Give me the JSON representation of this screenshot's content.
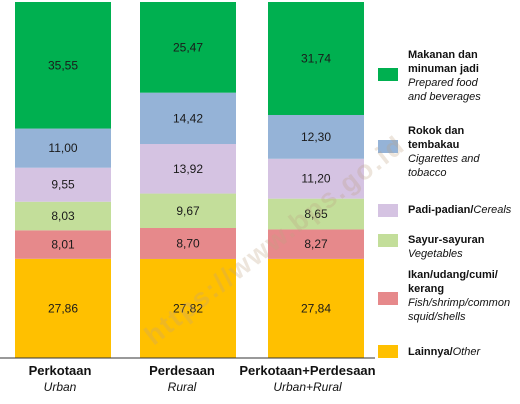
{
  "chart_data": {
    "type": "bar",
    "stacked": true,
    "categories": [
      {
        "name": "Perkotaan",
        "sub": "Urban"
      },
      {
        "name": "Perdesaan",
        "sub": "Rural"
      },
      {
        "name": "Perkotaan+Perdesaan",
        "sub": "Urban+Rural"
      }
    ],
    "series": [
      {
        "name": "Lainnya",
        "name_en": "Other",
        "color": "#FFC000",
        "values": [
          27.86,
          27.82,
          27.84
        ],
        "labels": [
          "27,86",
          "27,82",
          "27,84"
        ]
      },
      {
        "name": "Ikan/udang/cumi/kerang",
        "name_en": "Fish/shrimp/common squid/shells",
        "color": "#E6898B",
        "values": [
          8.01,
          8.7,
          8.27
        ],
        "labels": [
          "8,01",
          "8,70",
          "8,27"
        ]
      },
      {
        "name": "Sayur-sayuran",
        "name_en": "Vegetables",
        "color": "#C3DE9A",
        "values": [
          8.03,
          9.67,
          8.65
        ],
        "labels": [
          "8,03",
          "9,67",
          "8,65"
        ]
      },
      {
        "name": "Padi-padian/",
        "name_en": "Cereals",
        "color": "#D5C3E2",
        "values": [
          9.55,
          13.92,
          11.2
        ],
        "labels": [
          "9,55",
          "13,92",
          "11,20"
        ]
      },
      {
        "name": "Rokok dan tembakau",
        "name_en": "Cigarettes and tobacco",
        "color": "#95B3D7",
        "values": [
          11.0,
          14.42,
          12.3
        ],
        "labels": [
          "11,00",
          "14,42",
          "12,30"
        ]
      },
      {
        "name": "Makanan dan minuman jadi",
        "name_en": "Prepared food and beverages",
        "color": "#00B050",
        "values": [
          35.55,
          25.47,
          31.74
        ],
        "labels": [
          "35,55",
          "25,47",
          "31,74"
        ]
      }
    ],
    "ylim": [
      0,
      100
    ],
    "legend_position": "right",
    "grid": false
  },
  "legend": [
    {
      "name": "Makanan dan minuman jadi",
      "trans": "Prepared food and beverages",
      "color": "#00B050"
    },
    {
      "name": "Rokok dan tembakau",
      "trans": "Cigarettes and tobacco",
      "color": "#95B3D7"
    },
    {
      "name": "Padi-padian/",
      "trans": "Cereals",
      "color": "#D5C3E2"
    },
    {
      "name": "Sayur-sayuran",
      "trans": "Vegetables",
      "color": "#C3DE9A"
    },
    {
      "name": "Ikan/udang/cumi/ kerang",
      "trans": "Fish/shrimp/common squid/shells",
      "color": "#E6898B"
    },
    {
      "name": "Lainnya/",
      "trans": "Other",
      "color": "#FFC000"
    }
  ],
  "watermark": "https://www.bps.go.id"
}
